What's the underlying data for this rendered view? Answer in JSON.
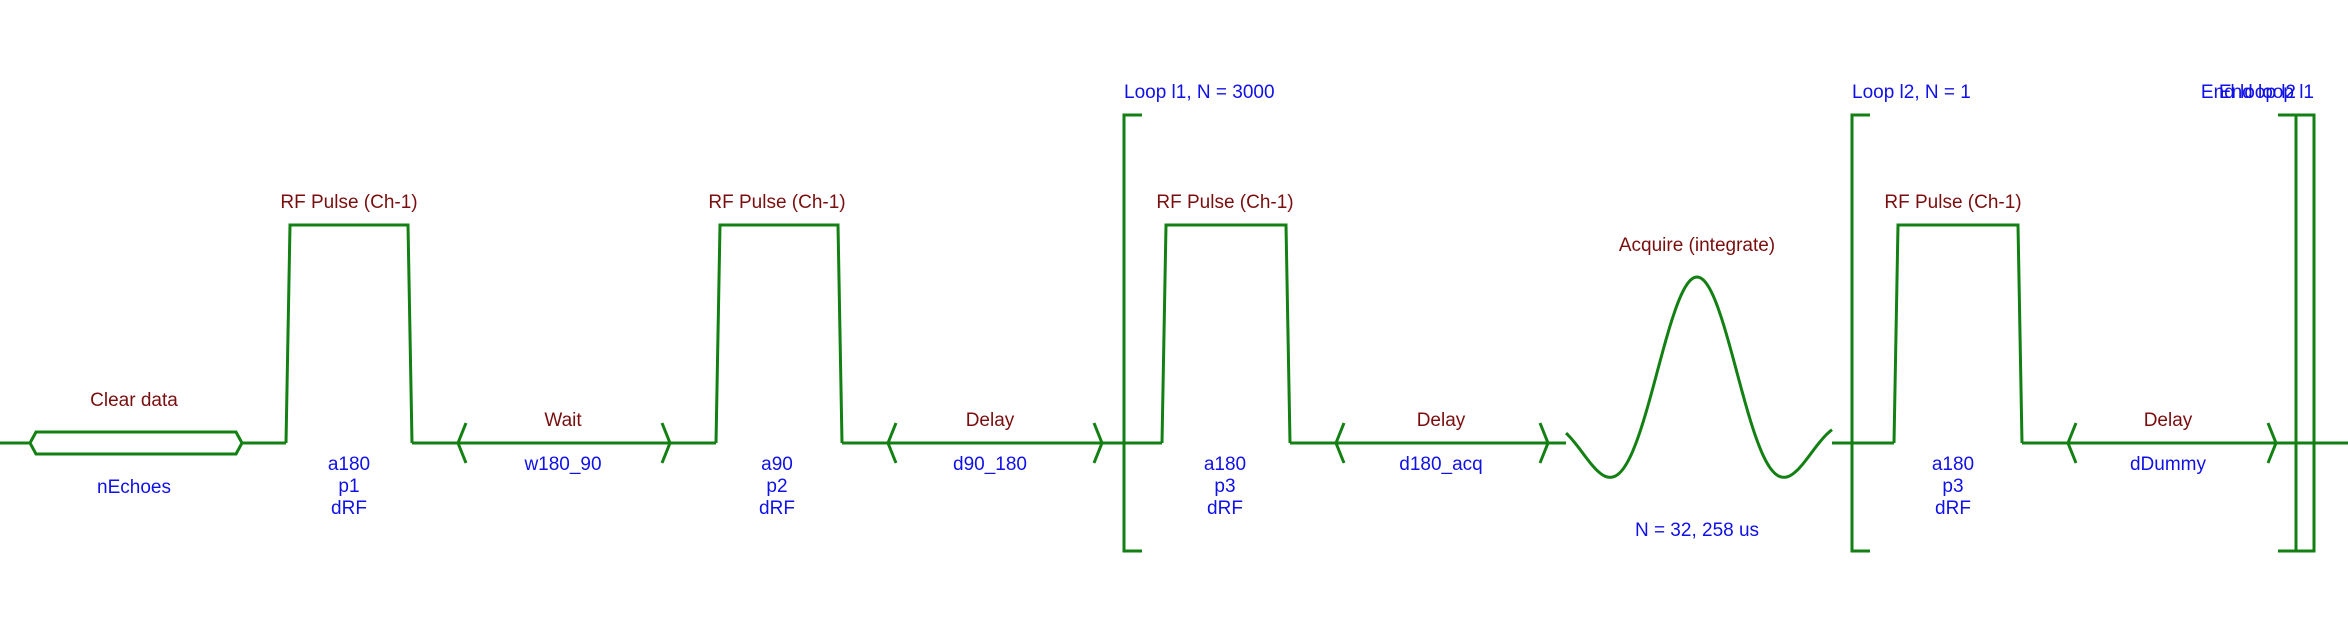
{
  "colors": {
    "line": "#138013",
    "label": "#7a0e0e",
    "param": "#1010e8",
    "background": "#ffffff"
  },
  "blocks": [
    {
      "kind": "clear",
      "label": "Clear data",
      "params": [
        "nEchoes"
      ]
    },
    {
      "kind": "pulse",
      "label": "RF Pulse (Ch-1)",
      "params": [
        "a180",
        "p1",
        "dRF"
      ]
    },
    {
      "kind": "delay",
      "label": "Wait",
      "params": [
        "w180_90"
      ]
    },
    {
      "kind": "pulse",
      "label": "RF Pulse (Ch-1)",
      "params": [
        "a90",
        "p2",
        "dRF"
      ]
    },
    {
      "kind": "delay",
      "label": "Delay",
      "params": [
        "d90_180"
      ]
    },
    {
      "kind": "loop_start",
      "label": "Loop l1, N = 3000"
    },
    {
      "kind": "pulse",
      "label": "RF Pulse (Ch-1)",
      "params": [
        "a180",
        "p3",
        "dRF"
      ]
    },
    {
      "kind": "delay",
      "label": "Delay",
      "params": [
        "d180_acq"
      ]
    },
    {
      "kind": "acquire",
      "label": "Acquire (integrate)",
      "params": [
        "N = 32, 258 us"
      ]
    },
    {
      "kind": "loop_start",
      "label": "Loop l2, N = 1"
    },
    {
      "kind": "pulse",
      "label": "RF Pulse (Ch-1)",
      "params": [
        "a180",
        "p3",
        "dRF"
      ]
    },
    {
      "kind": "delay",
      "label": "Delay",
      "params": [
        "dDummy"
      ]
    },
    {
      "kind": "loop_end",
      "label": "End loop l2"
    },
    {
      "kind": "loop_end",
      "label": "End loop l1"
    }
  ]
}
